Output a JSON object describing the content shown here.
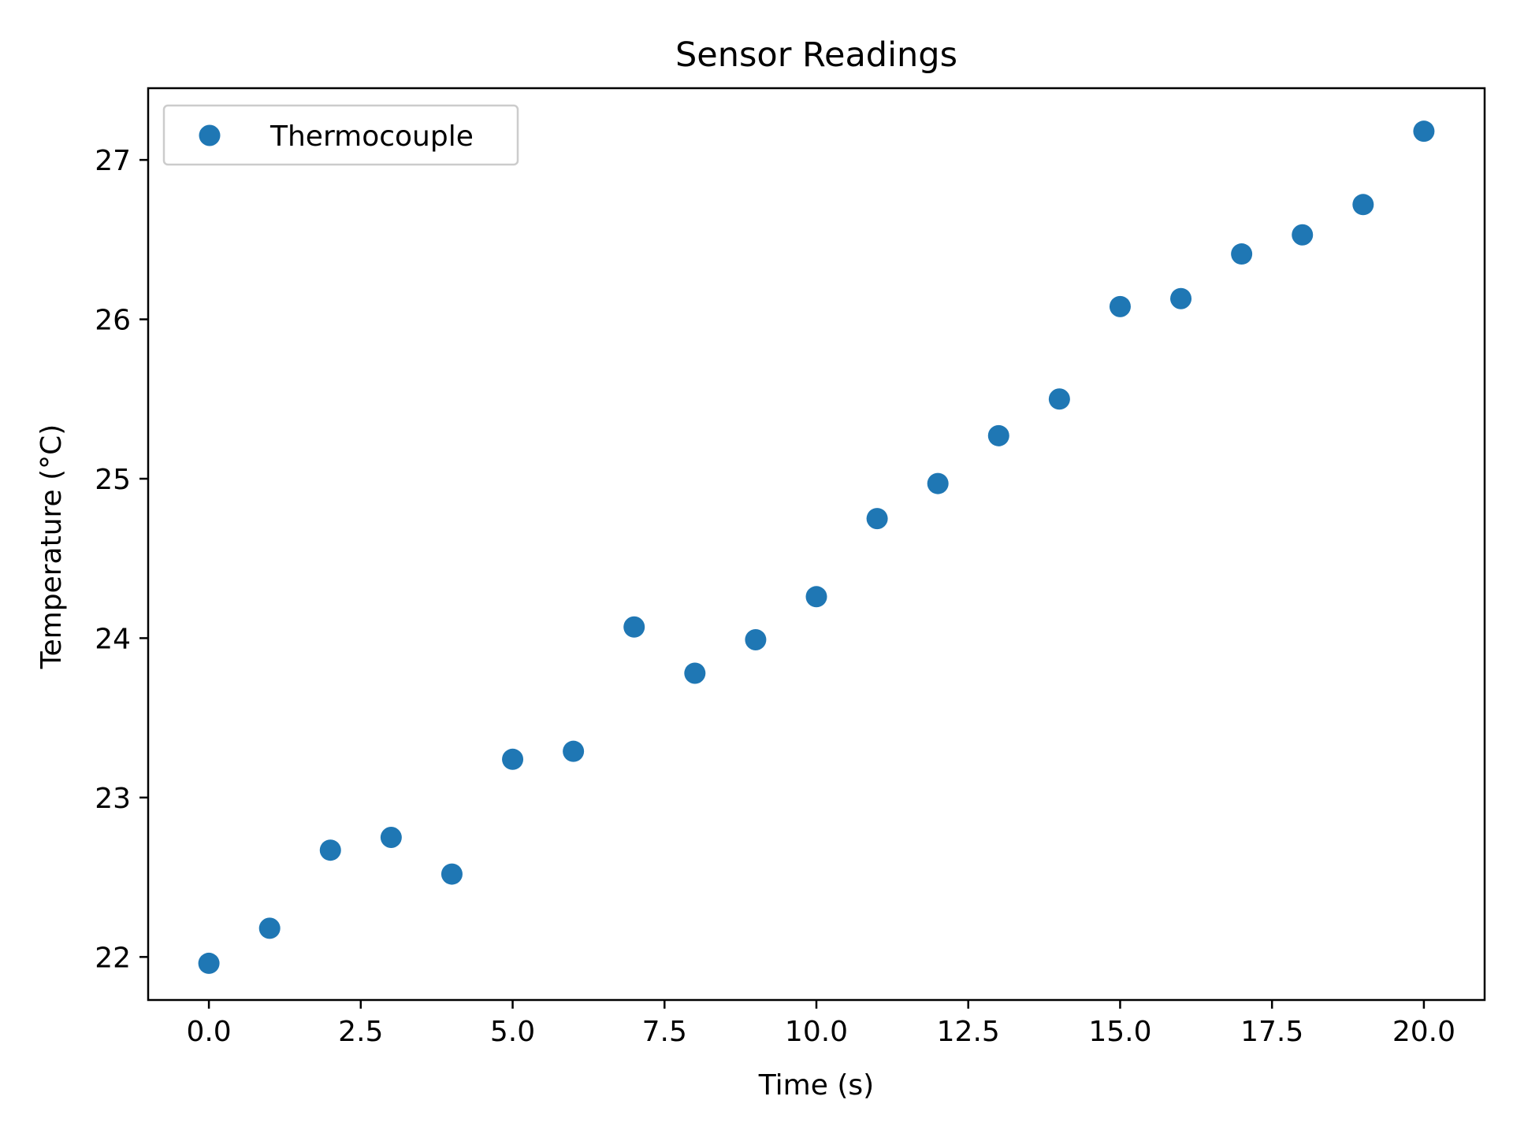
{
  "chart_data": {
    "type": "scatter",
    "title": "Sensor Readings",
    "xlabel": "Time (s)",
    "ylabel": "Temperature (°C)",
    "xlim": [
      -1,
      21
    ],
    "ylim": [
      21.73,
      27.45
    ],
    "xticks": [
      0,
      2.5,
      5,
      7.5,
      10,
      12.5,
      15,
      17.5,
      20
    ],
    "xtick_labels": [
      "0.0",
      "2.5",
      "5.0",
      "7.5",
      "10.0",
      "12.5",
      "15.0",
      "17.5",
      "20.0"
    ],
    "yticks": [
      22,
      23,
      24,
      25,
      26,
      27
    ],
    "ytick_labels": [
      "22",
      "23",
      "24",
      "25",
      "26",
      "27"
    ],
    "grid": false,
    "legend_position": "top-left",
    "series": [
      {
        "name": "Thermocouple",
        "color": "#1f77b4",
        "x": [
          0,
          1,
          2,
          3,
          4,
          5,
          6,
          7,
          8,
          9,
          10,
          11,
          12,
          13,
          14,
          15,
          16,
          17,
          18,
          19,
          20
        ],
        "y": [
          21.96,
          22.18,
          22.67,
          22.75,
          22.52,
          23.24,
          23.29,
          24.07,
          23.78,
          23.99,
          24.26,
          24.75,
          24.97,
          25.27,
          25.5,
          26.08,
          26.13,
          26.41,
          26.53,
          26.72,
          27.18
        ]
      }
    ]
  }
}
